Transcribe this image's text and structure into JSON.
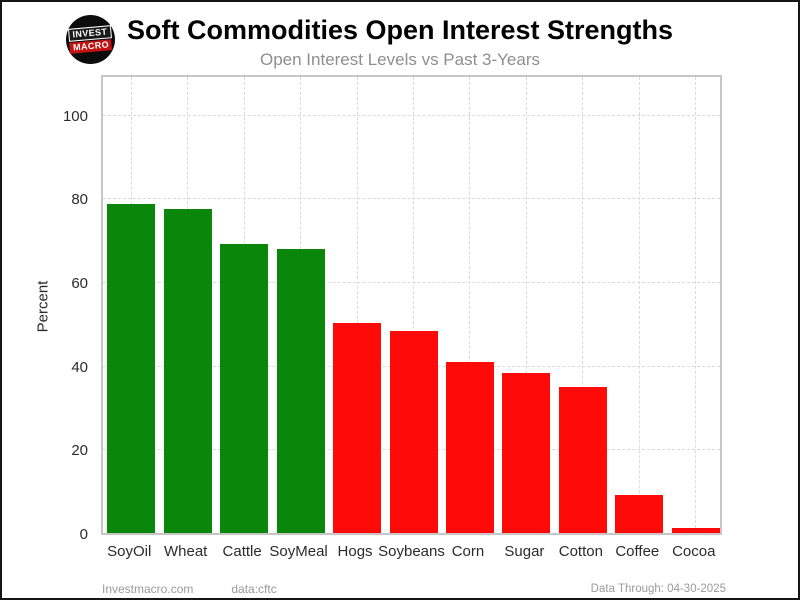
{
  "chart_data": {
    "type": "bar",
    "title": "Soft Commodities Open Interest Strengths",
    "subtitle": "Open Interest Levels vs Past 3-Years",
    "ylabel": "Percent",
    "xlabel": "",
    "categories": [
      "SoyOil",
      "Wheat",
      "Cattle",
      "SoyMeal",
      "Hogs",
      "Soybeans",
      "Corn",
      "Sugar",
      "Cotton",
      "Coffee",
      "Cocoa"
    ],
    "values": [
      78.6,
      77.6,
      69.0,
      67.8,
      50.3,
      48.2,
      40.8,
      38.2,
      35.0,
      9.0,
      1.1
    ],
    "bar_colors": [
      "#0a870a",
      "#0a870a",
      "#0a870a",
      "#0a870a",
      "#fe0a08",
      "#fe0a08",
      "#fe0a08",
      "#fe0a08",
      "#fe0a08",
      "#fe0a08",
      "#fe0a08"
    ],
    "yticks": [
      0,
      20,
      40,
      60,
      80,
      100
    ],
    "ylim": [
      0,
      110
    ],
    "grid": {
      "horizontal": "dashed",
      "vertical": "dashed"
    },
    "legend": "none"
  },
  "logo": {
    "line1": "INVEST",
    "line2": "MACRO"
  },
  "footer": {
    "site": "Investmacro.com",
    "source": "data:cftc",
    "data_through": "Data Through: 04-30-2025"
  }
}
